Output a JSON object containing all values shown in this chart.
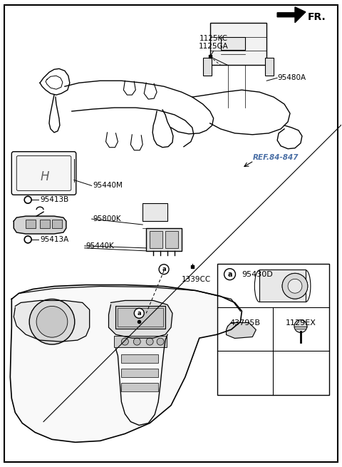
{
  "background_color": "#ffffff",
  "border_color": "#000000",
  "text_color": "#000000",
  "ref_color": "#4a6fa5",
  "fr_label": "FR.",
  "figsize": [
    4.8,
    6.55
  ],
  "dpi": 100,
  "label_1125KC": "1125KC",
  "label_1125GA": "1125GA",
  "label_95480A": "95480A",
  "label_REF": "REF.84-847",
  "label_95440M": "95440M",
  "label_95413B": "95413B",
  "label_95800K": "95800K",
  "label_95440K": "95440K",
  "label_95413A": "95413A",
  "label_1339CC": "1339CC",
  "label_95430D": "95430D",
  "label_43795B": "43795B",
  "label_1129EX": "1129EX"
}
